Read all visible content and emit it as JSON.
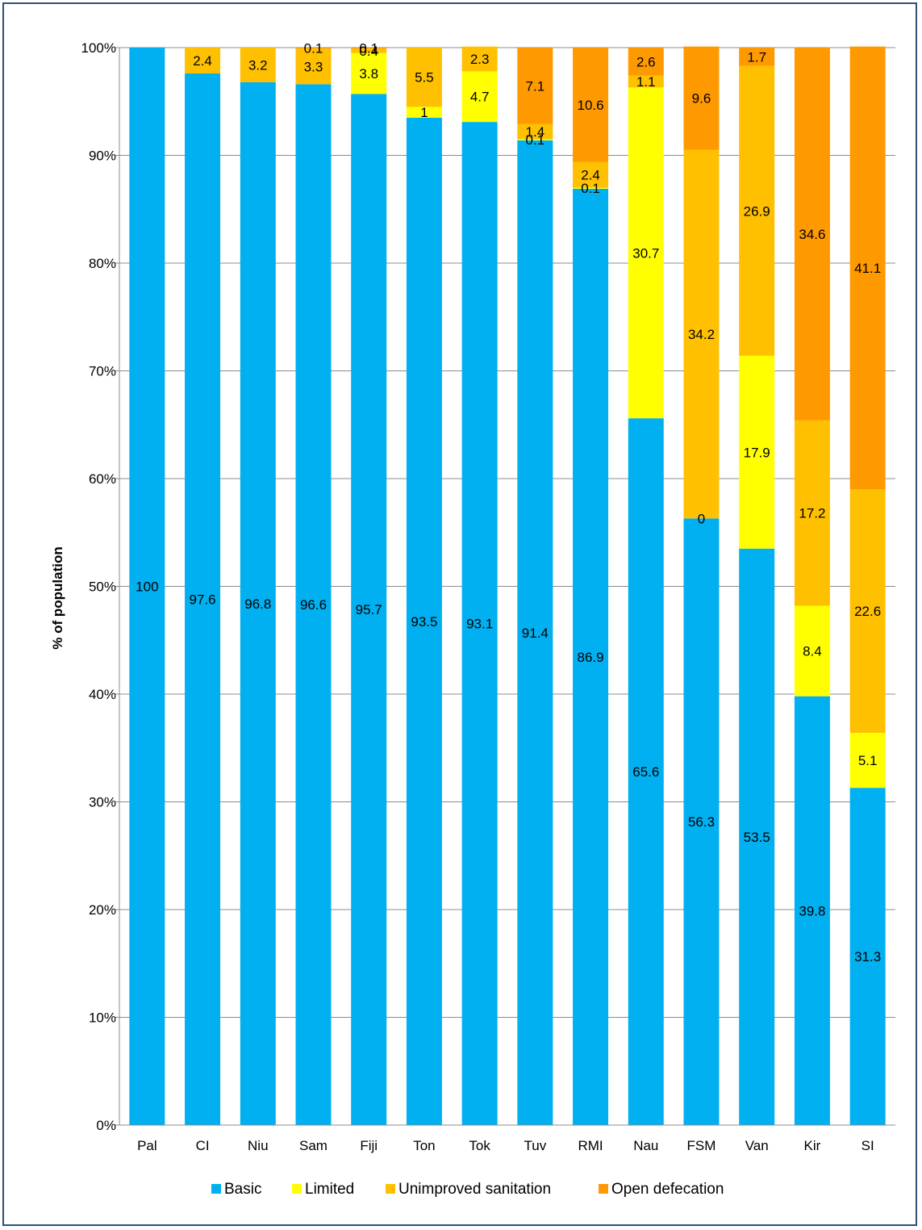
{
  "chart_data": {
    "type": "bar",
    "stacked": true,
    "title": "",
    "xlabel": "",
    "ylabel": "% of population",
    "ylim": [
      0,
      100
    ],
    "y_ticks": [
      "0%",
      "10%",
      "20%",
      "30%",
      "40%",
      "50%",
      "60%",
      "70%",
      "80%",
      "90%",
      "100%"
    ],
    "grid": true,
    "legend_position": "bottom",
    "categories": [
      "Pal",
      "CI",
      "Niu",
      "Sam",
      "Fiji",
      "Ton",
      "Tok",
      "Tuv",
      "RMI",
      "Nau",
      "FSM",
      "Van",
      "Kir",
      "SI"
    ],
    "series": [
      {
        "name": "Basic",
        "color": "#00b0f0",
        "values": [
          100,
          97.6,
          96.8,
          96.6,
          95.7,
          93.5,
          93.1,
          91.4,
          86.9,
          65.6,
          56.3,
          53.5,
          39.8,
          31.3
        ],
        "labels": [
          "100",
          "97.6",
          "96.8",
          "96.6",
          "95.7",
          "93.5",
          "93.1",
          "91.4",
          "86.9",
          "65.6",
          "56.3",
          "53.5",
          "39.8",
          "31.3"
        ]
      },
      {
        "name": "Limited",
        "color": "#ffff00",
        "values": [
          0,
          0,
          0,
          0,
          3.8,
          1,
          4.7,
          0.1,
          0.1,
          30.7,
          0,
          17.9,
          8.4,
          5.1
        ],
        "labels": [
          "",
          "",
          "",
          "",
          "3.8",
          "1",
          "4.7",
          "0.1",
          "0.1",
          "30.7",
          "0",
          "17.9",
          "8.4",
          "5.1"
        ]
      },
      {
        "name": "Unimproved sanitation",
        "color": "#ffc000",
        "values": [
          0,
          2.4,
          3.2,
          3.3,
          0.4,
          5.5,
          2.3,
          1.4,
          2.4,
          1.1,
          34.2,
          26.9,
          17.2,
          22.6
        ],
        "labels": [
          "",
          "2.4",
          "3.2",
          "3.3",
          "0.4",
          "5.5",
          "2.3",
          "1.4",
          "2.4",
          "1.1",
          "34.2",
          "26.9",
          "17.2",
          "22.6"
        ]
      },
      {
        "name": "Open defecation",
        "color": "#ff9900",
        "values": [
          0,
          0,
          0,
          0.1,
          0.1,
          0,
          0,
          7.1,
          10.6,
          2.6,
          9.6,
          1.7,
          34.6,
          41.1
        ],
        "labels": [
          "",
          "",
          "",
          "0.1",
          "0.1",
          "",
          "",
          "7.1",
          "10.6",
          "2.6",
          "9.6",
          "1.7",
          "34.6",
          "41.1"
        ]
      }
    ]
  }
}
